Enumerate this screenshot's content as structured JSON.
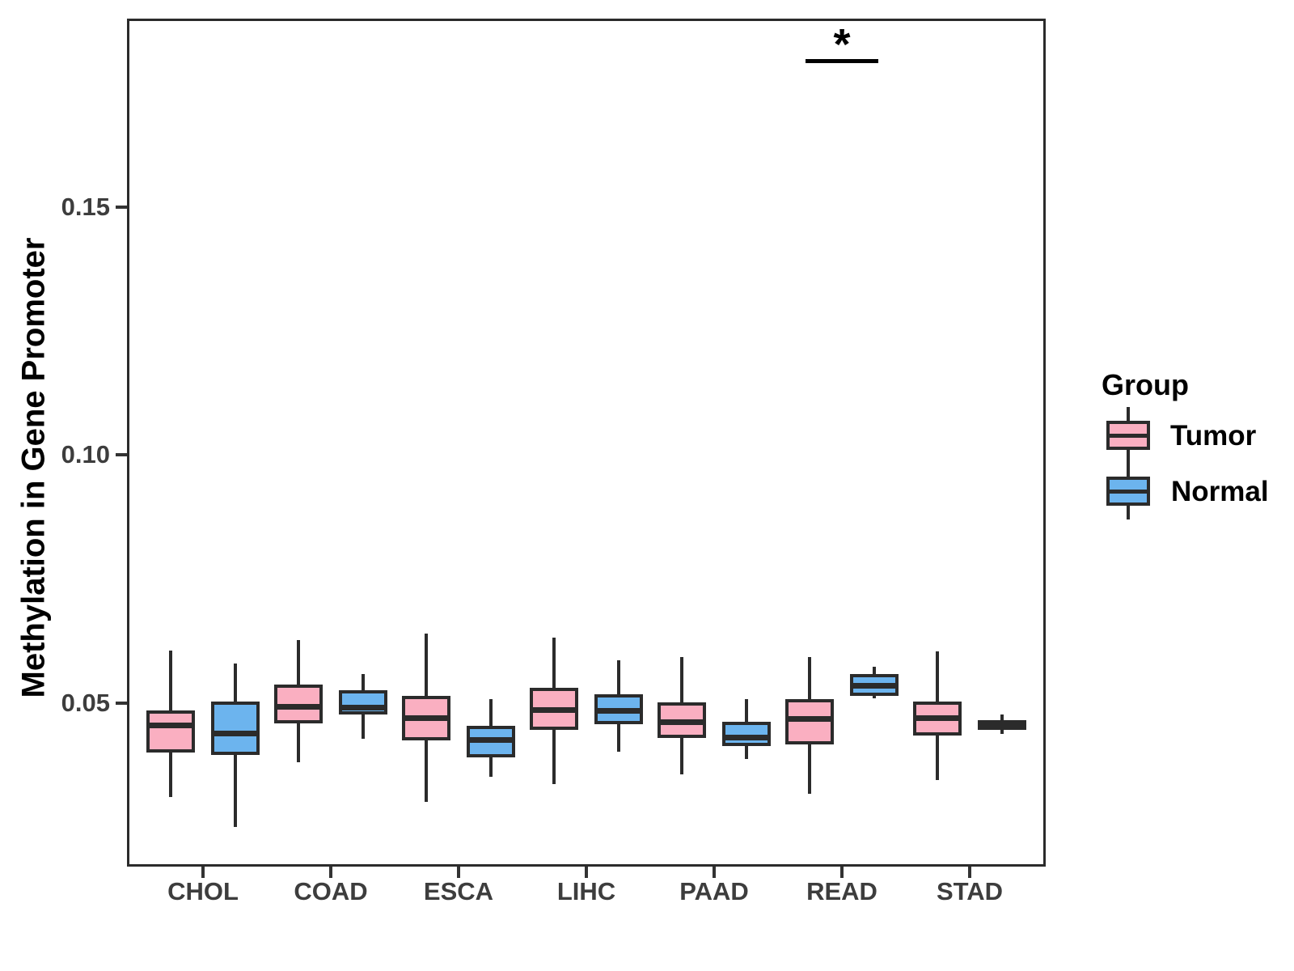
{
  "page": {
    "background": "#FFFFFF"
  },
  "chart_data": {
    "type": "boxplot",
    "title": "",
    "xlabel": "",
    "ylabel": "Methylation in Gene Promoter",
    "categories": [
      "CHOL",
      "COAD",
      "ESCA",
      "LIHC",
      "PAAD",
      "READ",
      "STAD"
    ],
    "groups": [
      "Tumor",
      "Normal"
    ],
    "ylim": [
      0.017,
      0.188
    ],
    "yticks": [
      {
        "label": "0.05",
        "value": 0.05
      },
      {
        "label": "0.10",
        "value": 0.1
      },
      {
        "label": "0.15",
        "value": 0.15
      }
    ],
    "grid": false,
    "colors": {
      "Tumor": "#FAAFC1",
      "Normal": "#6CB4EE",
      "stroke": "#2B2B2B",
      "axis_text": "#3D3D3D",
      "title_text": "#000000"
    },
    "series": [
      {
        "name": "Tumor",
        "boxes": [
          {
            "category": "CHOL",
            "whisker_low": 0.031,
            "q1": 0.04,
            "median": 0.0455,
            "q3": 0.0485,
            "whisker_high": 0.0605
          },
          {
            "category": "COAD",
            "whisker_low": 0.038,
            "q1": 0.0458,
            "median": 0.0493,
            "q3": 0.0537,
            "whisker_high": 0.0627
          },
          {
            "category": "ESCA",
            "whisker_low": 0.03,
            "q1": 0.0425,
            "median": 0.047,
            "q3": 0.0515,
            "whisker_high": 0.064
          },
          {
            "category": "LIHC",
            "whisker_low": 0.0335,
            "q1": 0.0445,
            "median": 0.0487,
            "q3": 0.053,
            "whisker_high": 0.0631
          },
          {
            "category": "PAAD",
            "whisker_low": 0.0355,
            "q1": 0.043,
            "median": 0.0462,
            "q3": 0.0501,
            "whisker_high": 0.0592
          },
          {
            "category": "READ",
            "whisker_low": 0.0316,
            "q1": 0.0416,
            "median": 0.0468,
            "q3": 0.0507,
            "whisker_high": 0.0592
          },
          {
            "category": "STAD",
            "whisker_low": 0.0344,
            "q1": 0.0434,
            "median": 0.047,
            "q3": 0.0503,
            "whisker_high": 0.0604
          }
        ]
      },
      {
        "name": "Normal",
        "boxes": [
          {
            "category": "CHOL",
            "whisker_low": 0.0249,
            "q1": 0.0395,
            "median": 0.044,
            "q3": 0.0503,
            "whisker_high": 0.0579
          },
          {
            "category": "COAD",
            "whisker_low": 0.0428,
            "q1": 0.0477,
            "median": 0.0491,
            "q3": 0.0526,
            "whisker_high": 0.0559
          },
          {
            "category": "ESCA",
            "whisker_low": 0.035,
            "q1": 0.039,
            "median": 0.0426,
            "q3": 0.0454,
            "whisker_high": 0.0507
          },
          {
            "category": "LIHC",
            "whisker_low": 0.0401,
            "q1": 0.0456,
            "median": 0.0485,
            "q3": 0.0517,
            "whisker_high": 0.0586
          },
          {
            "category": "PAAD",
            "whisker_low": 0.0387,
            "q1": 0.0413,
            "median": 0.0431,
            "q3": 0.0462,
            "whisker_high": 0.0507
          },
          {
            "category": "READ",
            "whisker_low": 0.051,
            "q1": 0.0515,
            "median": 0.0536,
            "q3": 0.0559,
            "whisker_high": 0.0573
          },
          {
            "category": "STAD",
            "whisker_low": 0.0438,
            "q1": 0.0445,
            "median": 0.0455,
            "q3": 0.0465,
            "whisker_high": 0.0477
          }
        ]
      }
    ],
    "annotations": [
      {
        "label": "*",
        "category": "READ",
        "from_group": "Tumor",
        "to_group": "Normal",
        "line_y": 0.1795,
        "star_y": 0.184
      }
    ],
    "legend": {
      "title": "Group",
      "position": "right",
      "entries": [
        {
          "label": "Tumor"
        },
        {
          "label": "Normal"
        }
      ]
    }
  }
}
